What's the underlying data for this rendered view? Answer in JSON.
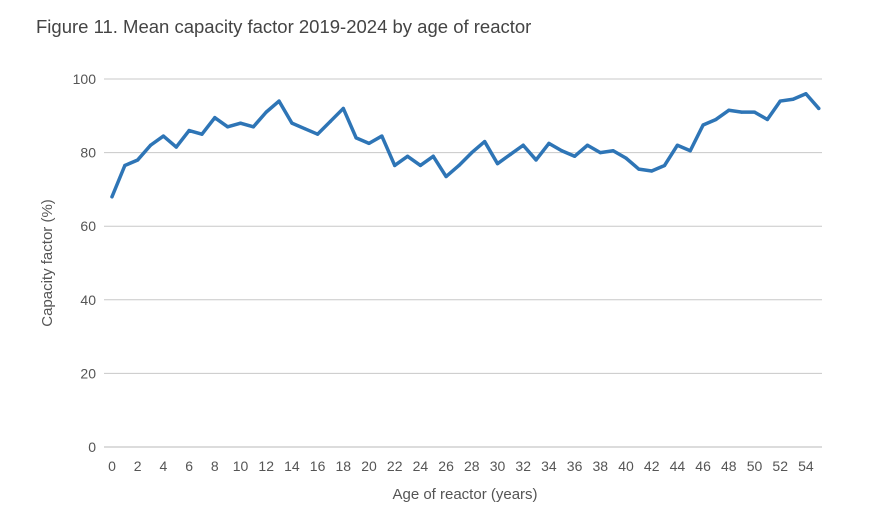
{
  "figure": {
    "title": "Figure 11. Mean capacity factor 2019-2024 by age of reactor"
  },
  "colors": {
    "line": "#2E75B6",
    "grid": "#C8C8C8",
    "text": "#555555"
  },
  "chart_data": {
    "type": "line",
    "title": "Figure 11. Mean capacity factor 2019-2024 by age of reactor",
    "xlabel": "Age of reactor (years)",
    "ylabel": "Capacity factor (%)",
    "xlim": [
      0,
      55
    ],
    "ylim": [
      0,
      100
    ],
    "grid": true,
    "legend": "none",
    "x_ticks": [
      "0",
      "2",
      "4",
      "6",
      "8",
      "10",
      "12",
      "14",
      "16",
      "18",
      "20",
      "22",
      "24",
      "26",
      "28",
      "30",
      "32",
      "34",
      "36",
      "38",
      "40",
      "42",
      "44",
      "46",
      "48",
      "50",
      "52",
      "54"
    ],
    "y_ticks": [
      "0",
      "20",
      "40",
      "60",
      "80",
      "100"
    ],
    "x": [
      0,
      1,
      2,
      3,
      4,
      5,
      6,
      7,
      8,
      9,
      10,
      11,
      12,
      13,
      14,
      15,
      16,
      17,
      18,
      19,
      20,
      21,
      22,
      23,
      24,
      25,
      26,
      27,
      28,
      29,
      30,
      31,
      32,
      33,
      34,
      35,
      36,
      37,
      38,
      39,
      40,
      41,
      42,
      43,
      44,
      45,
      46,
      47,
      48,
      49,
      50,
      51,
      52,
      53,
      54,
      55
    ],
    "series": [
      {
        "values": [
          68,
          76.5,
          78,
          82,
          84.5,
          81.5,
          86,
          85,
          89.5,
          87,
          88,
          87,
          91,
          94,
          88,
          86.5,
          85,
          88.5,
          92,
          84,
          82.5,
          84.5,
          76.5,
          79,
          76.5,
          79,
          73.5,
          76.5,
          80,
          83,
          77,
          79.5,
          82,
          78,
          82.5,
          80.5,
          79,
          82,
          80,
          80.5,
          78.5,
          75.5,
          75,
          76.5,
          82,
          80.5,
          87.5,
          89,
          91.5,
          91,
          91,
          89,
          94,
          94.5,
          96,
          92
        ]
      }
    ]
  }
}
